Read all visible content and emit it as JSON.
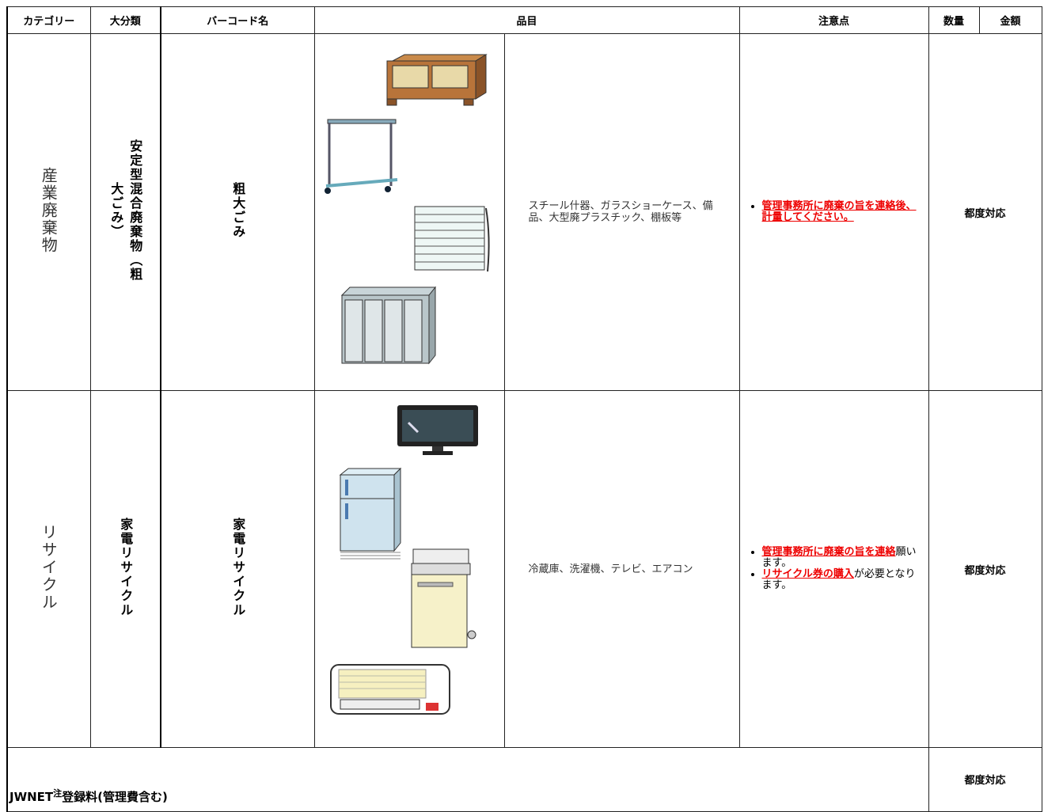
{
  "table": {
    "headers": [
      "カテゴリー",
      "大分類",
      "バーコード名",
      "品目",
      "注意点",
      "数量",
      "金額"
    ],
    "rows": [
      {
        "category": "産業廃棄物",
        "major": "安定型混合廃棄物（粗大ごみ）",
        "barcode": "粗大ごみ",
        "items": "スチール什器、ガラスショーケース、備品、大型廃プラスチック、棚板等",
        "notes": [
          {
            "emphasis": "管理事務所に廃棄の旨を連絡後、計量してください。"
          }
        ],
        "quantity": "都度対応"
      },
      {
        "category": "リサイクル",
        "major": "家電リサイクル",
        "barcode": "家電リサイクル",
        "items": "冷蔵庫、洗濯機、テレビ、エアコン",
        "notes": [
          {
            "emphasis": "管理事務所に廃棄の旨を連絡",
            "text": "願います。"
          },
          {
            "emphasis": "リサイクル券の購入",
            "text": "が必要となります。"
          }
        ],
        "quantity": "都度対応"
      }
    ],
    "footer": {
      "label": "JWNET",
      "note_mark": "注",
      "label_rest": "登録料(管理費含む)",
      "quantity": "都度対応"
    }
  }
}
